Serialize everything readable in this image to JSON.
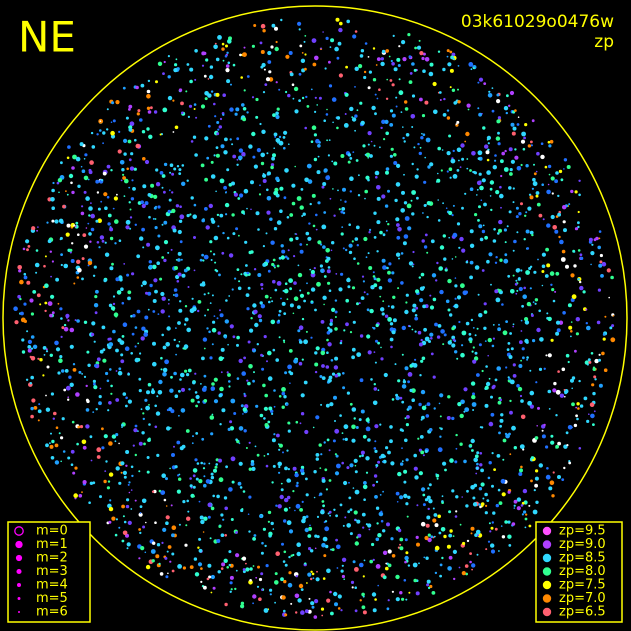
{
  "header": {
    "title": "NE",
    "image_id": "03k61029o0476w",
    "subtitle": "zp"
  },
  "magnitude_legend": {
    "color": "#ff00ff",
    "items": [
      "m=0",
      "m=1",
      "m=2",
      "m=3",
      "m=4",
      "m=5",
      "m=6"
    ]
  },
  "zp_legend": {
    "items": [
      {
        "label": "zp=9.5",
        "color": "#ff50ff"
      },
      {
        "label": "zp=9.0",
        "color": "#b040ff"
      },
      {
        "label": "zp=8.5",
        "color": "#30d8ff"
      },
      {
        "label": "zp=8.0",
        "color": "#30ff90"
      },
      {
        "label": "zp=7.5",
        "color": "#ffff00"
      },
      {
        "label": "zp=7.0",
        "color": "#ff8800"
      },
      {
        "label": "zp=6.5",
        "color": "#ff6070"
      }
    ]
  }
}
